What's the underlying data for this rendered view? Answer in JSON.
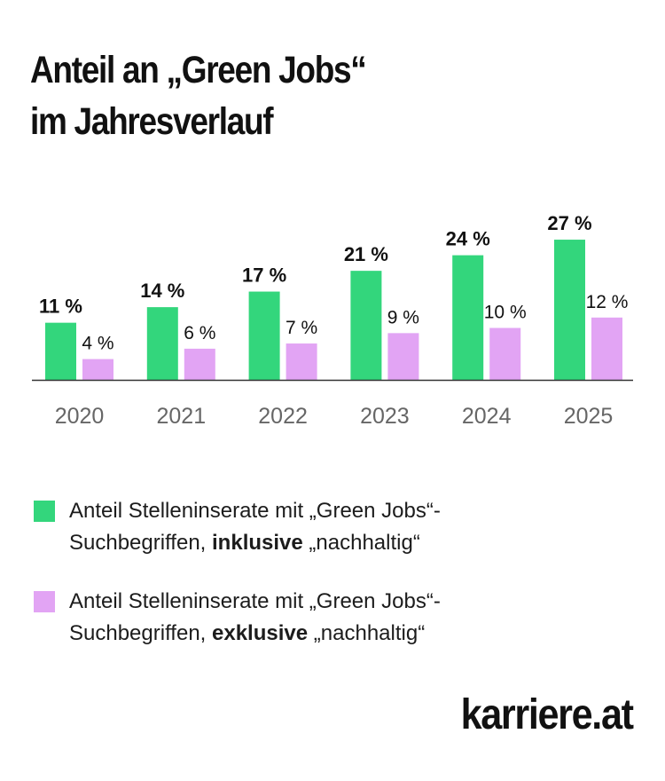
{
  "title": {
    "line1": "Anteil an „Green Jobs“",
    "line2": "im Jahresverlauf"
  },
  "chart_data": {
    "type": "bar",
    "categories": [
      "2020",
      "2021",
      "2022",
      "2023",
      "2024",
      "2025"
    ],
    "series": [
      {
        "values": [
          11,
          14,
          17,
          21,
          24,
          27
        ],
        "labels": [
          "11 %",
          "14 %",
          "17 %",
          "21 %",
          "24 %",
          "27 %"
        ],
        "color": "#33d67c"
      },
      {
        "values": [
          4,
          6,
          7,
          9,
          10,
          12
        ],
        "labels": [
          "4 %",
          "6 %",
          "7 %",
          "9 %",
          "10 %",
          "12 %"
        ],
        "color": "#e2a4f4"
      }
    ],
    "axis_color": "#333333",
    "tick_color": "#666666",
    "grid": false,
    "legend_position": "bottom"
  },
  "legend": {
    "items": [
      {
        "pre": "Anteil Stelleninserate mit „Green Jobs“-",
        "mid": "Suchbegriffen, ",
        "bold": "inklusive",
        "post": " „nachhaltig“",
        "color": "#33d67c"
      },
      {
        "pre": "Anteil Stelleninserate mit „Green Jobs“-",
        "mid": "Suchbegriffen, ",
        "bold": "exklusive",
        "post": " „nachhaltig“",
        "color": "#e2a4f4"
      }
    ]
  },
  "brand": {
    "logo": "karriere.at"
  }
}
